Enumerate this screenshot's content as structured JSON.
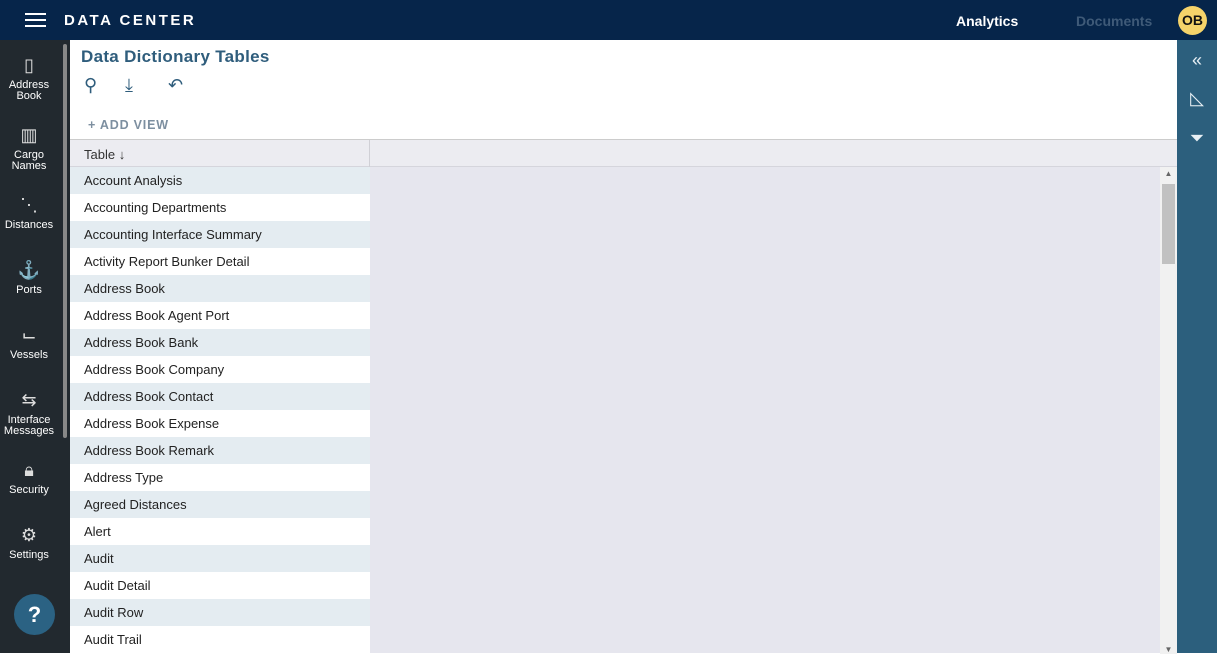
{
  "header": {
    "brand": "DATA CENTER",
    "nav": [
      "Analytics",
      "Documents"
    ],
    "avatar": "OB"
  },
  "sidebar": {
    "items": [
      {
        "icon": "address-book-icon",
        "label": "Address Book"
      },
      {
        "icon": "cargo-icon",
        "label": "Cargo Names"
      },
      {
        "icon": "distances-icon",
        "label": "Distances"
      },
      {
        "icon": "anchor-icon",
        "label": "Ports"
      },
      {
        "icon": "vessel-icon",
        "label": "Vessels"
      },
      {
        "icon": "arrows-icon",
        "label": "Interface Messages"
      },
      {
        "icon": "lock-icon",
        "label": "Security"
      },
      {
        "icon": "gear-icon",
        "label": "Settings"
      }
    ],
    "help": "?"
  },
  "page": {
    "title": "Data Dictionary Tables",
    "add_view": "+ ADD VIEW"
  },
  "table": {
    "column": "Table",
    "sort": "↓",
    "rows": [
      "Account Analysis",
      "Accounting Departments",
      "Accounting Interface Summary",
      "Activity Report Bunker Detail",
      "Address Book",
      "Address Book Agent Port",
      "Address Book Bank",
      "Address Book Company",
      "Address Book Contact",
      "Address Book Expense",
      "Address Book Remark",
      "Address Type",
      "Agreed Distances",
      "Alert",
      "Audit",
      "Audit Detail",
      "Audit Row",
      "Audit Trail"
    ]
  },
  "right_panel": {
    "icons": [
      "collapse-icon",
      "ruler-icon",
      "filter-icon"
    ]
  }
}
